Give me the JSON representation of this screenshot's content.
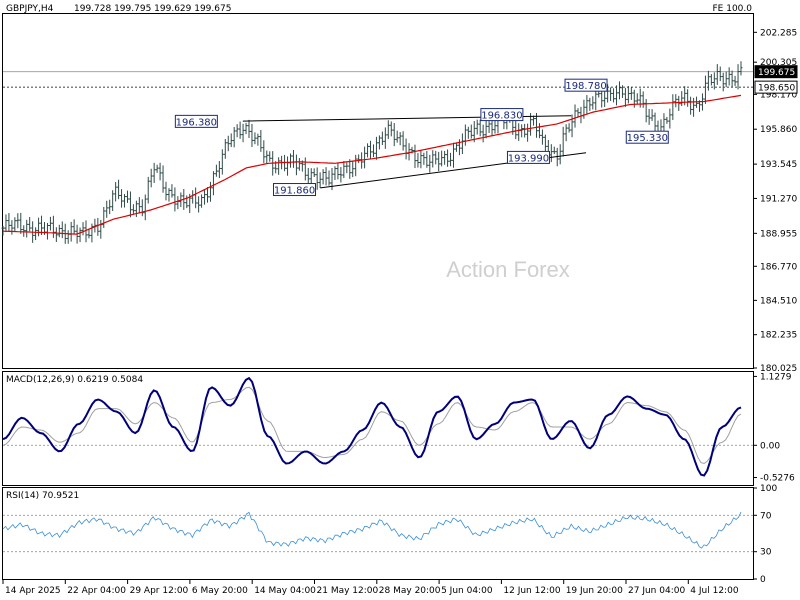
{
  "header": {
    "symbol_tf": "GBPJPY,H4",
    "ohlc": "199.728 199.795 199.629 199.675",
    "fe_label": "FE 100.0"
  },
  "watermark": "Action Forex",
  "colors": {
    "price_bar": "#2e4a47",
    "ma_line": "#dd0000",
    "trendline": "#000000",
    "macd_line": "#00007a",
    "signal_line": "#a0a0a0",
    "rsi_line": "#3a8fd8",
    "label_border": "#1a2a7a",
    "label_text": "#1a2a7a",
    "axis_box": "#000000"
  },
  "chart_data": [
    {
      "type": "candlestick",
      "panel": "price",
      "symbol": "GBPJPY",
      "timeframe": "H4",
      "current_price": 199.675,
      "y_ticks": [
        "202.285",
        "200.305",
        "198.170",
        "195.860",
        "193.545",
        "191.270",
        "188.955",
        "186.770",
        "184.510",
        "182.235",
        "180.025"
      ],
      "ylim": [
        180.025,
        203.5
      ],
      "price_tags": [
        {
          "label": "199.675",
          "value": 199.675,
          "highlight": true
        },
        {
          "label": "198.650",
          "value": 198.65,
          "highlight": false
        }
      ],
      "horizontal_levels": [
        {
          "value": 199.675,
          "style": "solid"
        },
        {
          "value": 198.65,
          "style": "dashed"
        }
      ],
      "annotations": [
        {
          "text": "196.380",
          "x": 0.262,
          "y": 196.38
        },
        {
          "text": "191.860",
          "x": 0.395,
          "y": 191.86
        },
        {
          "text": "196.830",
          "x": 0.676,
          "y": 196.83
        },
        {
          "text": "193.990",
          "x": 0.712,
          "y": 193.99
        },
        {
          "text": "198.780",
          "x": 0.79,
          "y": 198.78
        },
        {
          "text": "195.330",
          "x": 0.873,
          "y": 195.33
        }
      ],
      "trendlines": [
        {
          "from": [
            0.325,
            196.4
          ],
          "to": [
            0.77,
            196.75
          ]
        },
        {
          "from": [
            0.43,
            191.97
          ],
          "to": [
            0.79,
            194.3
          ]
        }
      ],
      "close_path": [
        [
          0.0,
          189.3
        ],
        [
          0.03,
          189.5
        ],
        [
          0.06,
          189.1
        ],
        [
          0.09,
          189.2
        ],
        [
          0.11,
          188.7
        ],
        [
          0.13,
          189.7
        ],
        [
          0.15,
          191.5
        ],
        [
          0.17,
          191.0
        ],
        [
          0.19,
          190.7
        ],
        [
          0.205,
          193.3
        ],
        [
          0.22,
          192.0
        ],
        [
          0.245,
          190.8
        ],
        [
          0.27,
          191.3
        ],
        [
          0.29,
          193.0
        ],
        [
          0.31,
          195.5
        ],
        [
          0.325,
          196.2
        ],
        [
          0.345,
          194.8
        ],
        [
          0.36,
          193.8
        ],
        [
          0.38,
          193.6
        ],
        [
          0.4,
          193.4
        ],
        [
          0.42,
          192.9
        ],
        [
          0.44,
          192.3
        ],
        [
          0.46,
          193.4
        ],
        [
          0.48,
          193.5
        ],
        [
          0.5,
          194.5
        ],
        [
          0.52,
          196.0
        ],
        [
          0.54,
          194.7
        ],
        [
          0.56,
          194.2
        ],
        [
          0.58,
          193.5
        ],
        [
          0.6,
          194.0
        ],
        [
          0.62,
          195.0
        ],
        [
          0.64,
          195.8
        ],
        [
          0.66,
          196.2
        ],
        [
          0.68,
          196.4
        ],
        [
          0.7,
          195.8
        ],
        [
          0.72,
          196.3
        ],
        [
          0.73,
          194.8
        ],
        [
          0.75,
          194.2
        ],
        [
          0.76,
          195.5
        ],
        [
          0.78,
          196.8
        ],
        [
          0.8,
          198.2
        ],
        [
          0.82,
          197.8
        ],
        [
          0.84,
          198.5
        ],
        [
          0.86,
          197.9
        ],
        [
          0.875,
          196.5
        ],
        [
          0.89,
          196.0
        ],
        [
          0.905,
          197.2
        ],
        [
          0.92,
          197.8
        ],
        [
          0.94,
          197.5
        ],
        [
          0.955,
          199.0
        ],
        [
          0.975,
          199.2
        ],
        [
          1.0,
          199.675
        ]
      ],
      "ma_path": [
        [
          0.0,
          189.1
        ],
        [
          0.06,
          189.0
        ],
        [
          0.1,
          188.9
        ],
        [
          0.15,
          189.9
        ],
        [
          0.2,
          190.5
        ],
        [
          0.25,
          191.3
        ],
        [
          0.3,
          192.5
        ],
        [
          0.33,
          193.3
        ],
        [
          0.36,
          193.6
        ],
        [
          0.4,
          193.7
        ],
        [
          0.45,
          193.6
        ],
        [
          0.5,
          193.9
        ],
        [
          0.55,
          194.3
        ],
        [
          0.6,
          194.8
        ],
        [
          0.65,
          195.3
        ],
        [
          0.7,
          195.8
        ],
        [
          0.75,
          196.2
        ],
        [
          0.8,
          197.0
        ],
        [
          0.85,
          197.5
        ],
        [
          0.9,
          197.6
        ],
        [
          0.95,
          197.7
        ],
        [
          1.0,
          198.1
        ]
      ]
    },
    {
      "type": "line",
      "panel": "indicator",
      "label": "MACD(12,26,9) 0.6219 0.5084",
      "y_ticks": [
        "1.1279",
        "0.00",
        "-0.5276"
      ],
      "ylim": [
        -0.65,
        1.2
      ],
      "zero_line": 0.0,
      "series": [
        {
          "values": [
            0.1,
            0.45,
            0.2,
            -0.1,
            0.35,
            0.75,
            0.55,
            0.2,
            0.9,
            0.3,
            -0.1,
            0.95,
            0.65,
            1.1,
            0.15,
            -0.3,
            -0.1,
            -0.3,
            -0.1,
            0.25,
            0.7,
            0.3,
            -0.2,
            0.55,
            0.8,
            0.1,
            0.35,
            0.7,
            0.75,
            0.1,
            0.4,
            -0.05,
            0.5,
            0.8,
            0.6,
            0.5,
            0.1,
            -0.5,
            0.3,
            0.62
          ]
        },
        {
          "values": [
            0.0,
            0.3,
            0.25,
            0.05,
            0.2,
            0.6,
            0.6,
            0.35,
            0.7,
            0.45,
            0.05,
            0.7,
            0.75,
            0.95,
            0.4,
            -0.1,
            -0.1,
            -0.2,
            -0.15,
            0.1,
            0.55,
            0.4,
            0.0,
            0.35,
            0.7,
            0.3,
            0.25,
            0.55,
            0.7,
            0.3,
            0.3,
            0.1,
            0.35,
            0.7,
            0.65,
            0.55,
            0.25,
            -0.3,
            0.05,
            0.51
          ]
        }
      ]
    },
    {
      "type": "line",
      "panel": "indicator",
      "label": "RSI(14) 70.9521",
      "y_ticks": [
        "100",
        "70",
        "30",
        "0"
      ],
      "ylim": [
        0,
        100
      ],
      "levels": [
        70,
        30
      ],
      "series": [
        {
          "values": [
            55,
            60,
            50,
            48,
            62,
            66,
            55,
            50,
            68,
            55,
            48,
            65,
            58,
            72,
            40,
            38,
            45,
            42,
            50,
            55,
            64,
            48,
            44,
            60,
            66,
            48,
            55,
            62,
            66,
            46,
            58,
            52,
            60,
            68,
            66,
            60,
            48,
            34,
            55,
            71
          ]
        }
      ]
    }
  ],
  "x_axis": {
    "labels": [
      "14 Apr 2025",
      "22 Apr 04:00",
      "29 Apr 12:00",
      "6 May 20:00",
      "14 May 04:00",
      "21 May 12:00",
      "28 May 20:00",
      "5 Jun 04:00",
      "12 Jun 12:00",
      "19 Jun 20:00",
      "27 Jun 04:00",
      "4 Jul 12:00"
    ]
  }
}
